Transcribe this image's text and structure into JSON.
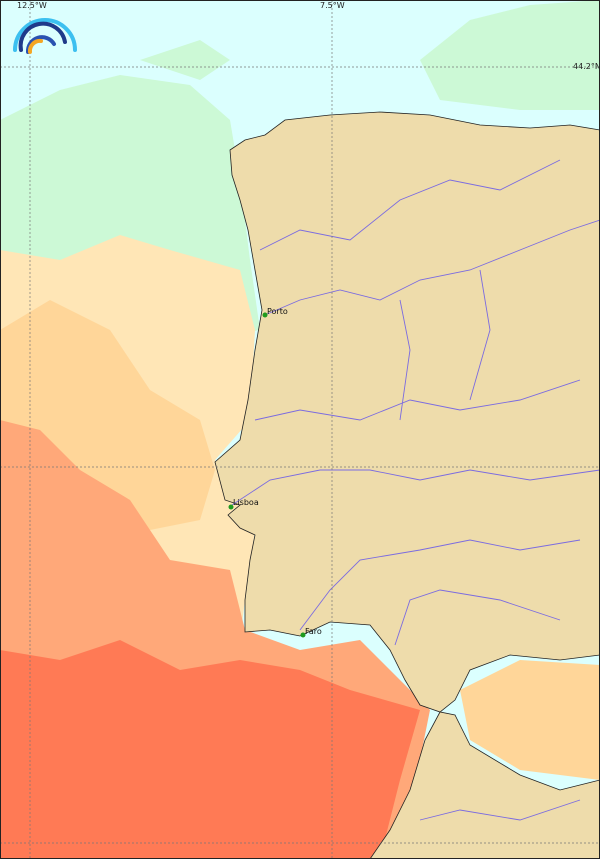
{
  "map": {
    "grid_labels": {
      "lon_left": "12.5°W",
      "lon_right": "7.5°W",
      "lat_top": "44.2°N"
    },
    "cities": [
      {
        "name": "Porto"
      },
      {
        "name": "Lisboa"
      },
      {
        "name": "Faro"
      }
    ],
    "colors": {
      "land": "#eedcab",
      "river": "#7b6be0",
      "sea_coldest": "#dbfffe",
      "sea_cool": "#ccf9d6",
      "sea_mild": "#ffe6b6",
      "sea_warm": "#ffd699",
      "sea_warmer": "#ffa879",
      "sea_hot": "#ff7a55",
      "city_marker": "#1e9a1e"
    },
    "logo": "rainbow-arcs-logo"
  }
}
